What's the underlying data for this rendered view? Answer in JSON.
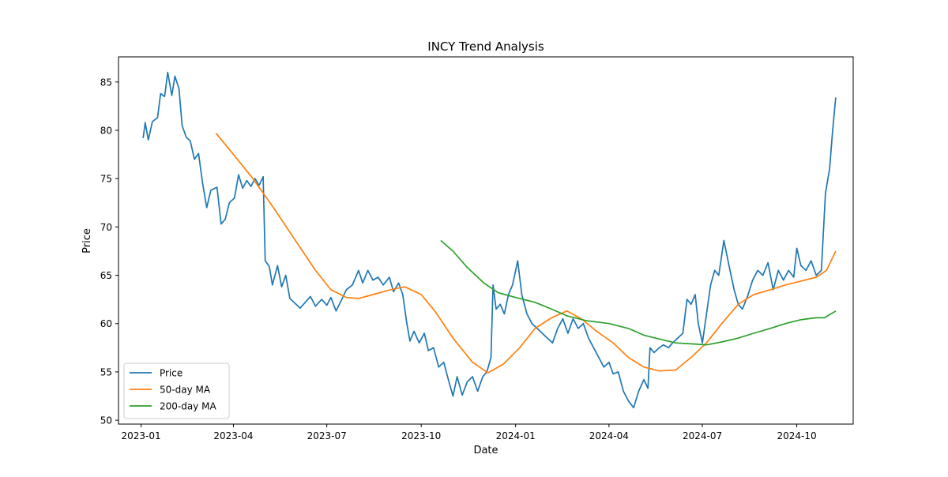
{
  "chart_data": {
    "type": "line",
    "title": "INCY Trend Analysis",
    "xlabel": "Date",
    "ylabel": "Price",
    "xlim": [
      "2022-12-10",
      "2024-11-25"
    ],
    "ylim": [
      49.6,
      87.6
    ],
    "x_ticks": [
      "2023-01",
      "2023-04",
      "2023-07",
      "2023-10",
      "2024-01",
      "2024-04",
      "2024-07",
      "2024-10"
    ],
    "y_ticks": [
      50,
      55,
      60,
      65,
      70,
      75,
      80,
      85
    ],
    "grid": false,
    "legend": "lower-left",
    "series": [
      {
        "name": "Price",
        "color": "#1f77b4",
        "points": [
          [
            "2023-01-03",
            79.2
          ],
          [
            "2023-01-05",
            80.8
          ],
          [
            "2023-01-08",
            79.0
          ],
          [
            "2023-01-12",
            80.9
          ],
          [
            "2023-01-17",
            81.3
          ],
          [
            "2023-01-20",
            83.8
          ],
          [
            "2023-01-24",
            83.5
          ],
          [
            "2023-01-27",
            86.0
          ],
          [
            "2023-01-31",
            83.6
          ],
          [
            "2023-02-03",
            85.6
          ],
          [
            "2023-02-07",
            84.3
          ],
          [
            "2023-02-10",
            80.5
          ],
          [
            "2023-02-14",
            79.3
          ],
          [
            "2023-02-18",
            78.9
          ],
          [
            "2023-02-22",
            77.0
          ],
          [
            "2023-02-26",
            77.6
          ],
          [
            "2023-03-02",
            74.5
          ],
          [
            "2023-03-06",
            72.0
          ],
          [
            "2023-03-10",
            73.8
          ],
          [
            "2023-03-16",
            74.1
          ],
          [
            "2023-03-20",
            70.3
          ],
          [
            "2023-03-24",
            70.8
          ],
          [
            "2023-03-28",
            72.5
          ],
          [
            "2023-04-02",
            73.0
          ],
          [
            "2023-04-06",
            75.4
          ],
          [
            "2023-04-10",
            74.0
          ],
          [
            "2023-04-14",
            74.8
          ],
          [
            "2023-04-18",
            74.2
          ],
          [
            "2023-04-22",
            75.0
          ],
          [
            "2023-04-26",
            74.3
          ],
          [
            "2023-04-30",
            75.2
          ],
          [
            "2023-05-02",
            66.5
          ],
          [
            "2023-05-06",
            65.9
          ],
          [
            "2023-05-09",
            64.0
          ],
          [
            "2023-05-14",
            66.0
          ],
          [
            "2023-05-18",
            63.8
          ],
          [
            "2023-05-22",
            65.0
          ],
          [
            "2023-05-26",
            62.6
          ],
          [
            "2023-06-01",
            62.0
          ],
          [
            "2023-06-05",
            61.6
          ],
          [
            "2023-06-10",
            62.2
          ],
          [
            "2023-06-15",
            62.8
          ],
          [
            "2023-06-20",
            61.8
          ],
          [
            "2023-06-26",
            62.5
          ],
          [
            "2023-07-01",
            61.9
          ],
          [
            "2023-07-05",
            62.7
          ],
          [
            "2023-07-10",
            61.3
          ],
          [
            "2023-07-16",
            62.6
          ],
          [
            "2023-07-20",
            63.5
          ],
          [
            "2023-07-26",
            64.0
          ],
          [
            "2023-08-01",
            65.5
          ],
          [
            "2023-08-05",
            64.2
          ],
          [
            "2023-08-10",
            65.5
          ],
          [
            "2023-08-15",
            64.5
          ],
          [
            "2023-08-20",
            64.8
          ],
          [
            "2023-08-25",
            64.0
          ],
          [
            "2023-08-31",
            64.8
          ],
          [
            "2023-09-04",
            63.3
          ],
          [
            "2023-09-09",
            64.2
          ],
          [
            "2023-09-13",
            63.0
          ],
          [
            "2023-09-17",
            60.0
          ],
          [
            "2023-09-20",
            58.2
          ],
          [
            "2023-09-24",
            59.2
          ],
          [
            "2023-09-29",
            58.0
          ],
          [
            "2023-10-04",
            59.0
          ],
          [
            "2023-10-08",
            57.2
          ],
          [
            "2023-10-13",
            57.5
          ],
          [
            "2023-10-18",
            55.5
          ],
          [
            "2023-10-23",
            56.0
          ],
          [
            "2023-10-28",
            54.0
          ],
          [
            "2023-11-01",
            52.5
          ],
          [
            "2023-11-05",
            54.5
          ],
          [
            "2023-11-10",
            52.6
          ],
          [
            "2023-11-15",
            54.0
          ],
          [
            "2023-11-20",
            54.5
          ],
          [
            "2023-11-25",
            53.0
          ],
          [
            "2023-11-30",
            54.5
          ],
          [
            "2023-12-04",
            55.0
          ],
          [
            "2023-12-08",
            56.5
          ],
          [
            "2023-12-10",
            64.0
          ],
          [
            "2023-12-13",
            61.5
          ],
          [
            "2023-12-17",
            62.0
          ],
          [
            "2023-12-21",
            61.0
          ],
          [
            "2023-12-25",
            63.0
          ],
          [
            "2023-12-29",
            64.0
          ],
          [
            "2024-01-03",
            66.5
          ],
          [
            "2024-01-07",
            63.0
          ],
          [
            "2024-01-12",
            61.0
          ],
          [
            "2024-01-17",
            60.0
          ],
          [
            "2024-01-22",
            59.5
          ],
          [
            "2024-01-27",
            59.0
          ],
          [
            "2024-02-01",
            58.5
          ],
          [
            "2024-02-06",
            58.0
          ],
          [
            "2024-02-11",
            59.5
          ],
          [
            "2024-02-16",
            60.5
          ],
          [
            "2024-02-21",
            59.0
          ],
          [
            "2024-02-26",
            60.5
          ],
          [
            "2024-03-02",
            59.5
          ],
          [
            "2024-03-07",
            60.0
          ],
          [
            "2024-03-12",
            58.5
          ],
          [
            "2024-03-17",
            57.5
          ],
          [
            "2024-03-22",
            56.5
          ],
          [
            "2024-03-27",
            55.5
          ],
          [
            "2024-04-01",
            56.0
          ],
          [
            "2024-04-05",
            54.8
          ],
          [
            "2024-04-10",
            55.0
          ],
          [
            "2024-04-15",
            53.0
          ],
          [
            "2024-04-20",
            52.0
          ],
          [
            "2024-04-25",
            51.3
          ],
          [
            "2024-04-30",
            53.0
          ],
          [
            "2024-05-05",
            54.2
          ],
          [
            "2024-05-09",
            53.3
          ],
          [
            "2024-05-11",
            57.5
          ],
          [
            "2024-05-15",
            57.0
          ],
          [
            "2024-05-20",
            57.5
          ],
          [
            "2024-05-24",
            57.8
          ],
          [
            "2024-05-29",
            57.5
          ],
          [
            "2024-06-02",
            58.0
          ],
          [
            "2024-06-07",
            58.5
          ],
          [
            "2024-06-12",
            59.0
          ],
          [
            "2024-06-16",
            62.5
          ],
          [
            "2024-06-20",
            62.0
          ],
          [
            "2024-06-24",
            63.0
          ],
          [
            "2024-06-27",
            60.0
          ],
          [
            "2024-07-01",
            58.0
          ],
          [
            "2024-07-05",
            61.0
          ],
          [
            "2024-07-09",
            64.0
          ],
          [
            "2024-07-13",
            65.5
          ],
          [
            "2024-07-17",
            65.0
          ],
          [
            "2024-07-22",
            68.6
          ],
          [
            "2024-07-27",
            66.0
          ],
          [
            "2024-08-01",
            63.5
          ],
          [
            "2024-08-05",
            62.0
          ],
          [
            "2024-08-09",
            61.5
          ],
          [
            "2024-08-14",
            62.8
          ],
          [
            "2024-08-19",
            64.5
          ],
          [
            "2024-08-24",
            65.5
          ],
          [
            "2024-08-29",
            65.0
          ],
          [
            "2024-09-03",
            66.3
          ],
          [
            "2024-09-08",
            63.5
          ],
          [
            "2024-09-13",
            65.5
          ],
          [
            "2024-09-18",
            64.5
          ],
          [
            "2024-09-23",
            65.5
          ],
          [
            "2024-09-28",
            64.8
          ],
          [
            "2024-10-01",
            67.8
          ],
          [
            "2024-10-05",
            66.0
          ],
          [
            "2024-10-10",
            65.5
          ],
          [
            "2024-10-15",
            66.5
          ],
          [
            "2024-10-20",
            65.0
          ],
          [
            "2024-10-25",
            65.5
          ],
          [
            "2024-10-29",
            73.5
          ],
          [
            "2024-11-02",
            76.0
          ],
          [
            "2024-11-05",
            80.0
          ],
          [
            "2024-11-08",
            83.4
          ]
        ]
      },
      {
        "name": "50-day MA",
        "color": "#ff7f0e",
        "points": [
          [
            "2023-03-15",
            79.7
          ],
          [
            "2023-04-01",
            77.5
          ],
          [
            "2023-04-20",
            75.0
          ],
          [
            "2023-05-10",
            72.0
          ],
          [
            "2023-06-01",
            68.5
          ],
          [
            "2023-06-20",
            65.5
          ],
          [
            "2023-07-05",
            63.5
          ],
          [
            "2023-07-20",
            62.7
          ],
          [
            "2023-08-01",
            62.6
          ],
          [
            "2023-08-15",
            63.0
          ],
          [
            "2023-09-01",
            63.5
          ],
          [
            "2023-09-15",
            63.8
          ],
          [
            "2023-10-01",
            63.0
          ],
          [
            "2023-10-15",
            61.2
          ],
          [
            "2023-11-01",
            58.5
          ],
          [
            "2023-11-20",
            56.0
          ],
          [
            "2023-12-05",
            54.9
          ],
          [
            "2023-12-20",
            55.8
          ],
          [
            "2024-01-05",
            57.5
          ],
          [
            "2024-01-20",
            59.5
          ],
          [
            "2024-02-05",
            60.6
          ],
          [
            "2024-02-20",
            61.3
          ],
          [
            "2024-03-05",
            60.5
          ],
          [
            "2024-03-20",
            59.2
          ],
          [
            "2024-04-05",
            58.0
          ],
          [
            "2024-04-20",
            56.5
          ],
          [
            "2024-05-05",
            55.5
          ],
          [
            "2024-05-20",
            55.1
          ],
          [
            "2024-06-05",
            55.2
          ],
          [
            "2024-06-20",
            56.5
          ],
          [
            "2024-07-05",
            58.0
          ],
          [
            "2024-07-20",
            60.0
          ],
          [
            "2024-08-05",
            62.0
          ],
          [
            "2024-08-20",
            63.0
          ],
          [
            "2024-09-05",
            63.5
          ],
          [
            "2024-09-20",
            64.0
          ],
          [
            "2024-10-05",
            64.4
          ],
          [
            "2024-10-20",
            64.8
          ],
          [
            "2024-10-30",
            65.5
          ],
          [
            "2024-11-08",
            67.5
          ]
        ]
      },
      {
        "name": "200-day MA",
        "color": "#2ca02c",
        "points": [
          [
            "2023-10-20",
            68.6
          ],
          [
            "2023-11-01",
            67.5
          ],
          [
            "2023-11-15",
            65.8
          ],
          [
            "2023-12-01",
            64.2
          ],
          [
            "2023-12-15",
            63.2
          ],
          [
            "2024-01-01",
            62.7
          ],
          [
            "2024-01-20",
            62.2
          ],
          [
            "2024-02-05",
            61.5
          ],
          [
            "2024-02-20",
            60.8
          ],
          [
            "2024-03-10",
            60.3
          ],
          [
            "2024-04-01",
            60.0
          ],
          [
            "2024-04-20",
            59.5
          ],
          [
            "2024-05-05",
            58.8
          ],
          [
            "2024-05-20",
            58.4
          ],
          [
            "2024-06-05",
            58.0
          ],
          [
            "2024-06-20",
            57.9
          ],
          [
            "2024-07-05",
            57.8
          ],
          [
            "2024-07-20",
            58.1
          ],
          [
            "2024-08-05",
            58.5
          ],
          [
            "2024-08-20",
            59.0
          ],
          [
            "2024-09-05",
            59.5
          ],
          [
            "2024-09-20",
            60.0
          ],
          [
            "2024-10-05",
            60.4
          ],
          [
            "2024-10-20",
            60.6
          ],
          [
            "2024-10-28",
            60.6
          ],
          [
            "2024-11-08",
            61.3
          ]
        ]
      }
    ]
  }
}
